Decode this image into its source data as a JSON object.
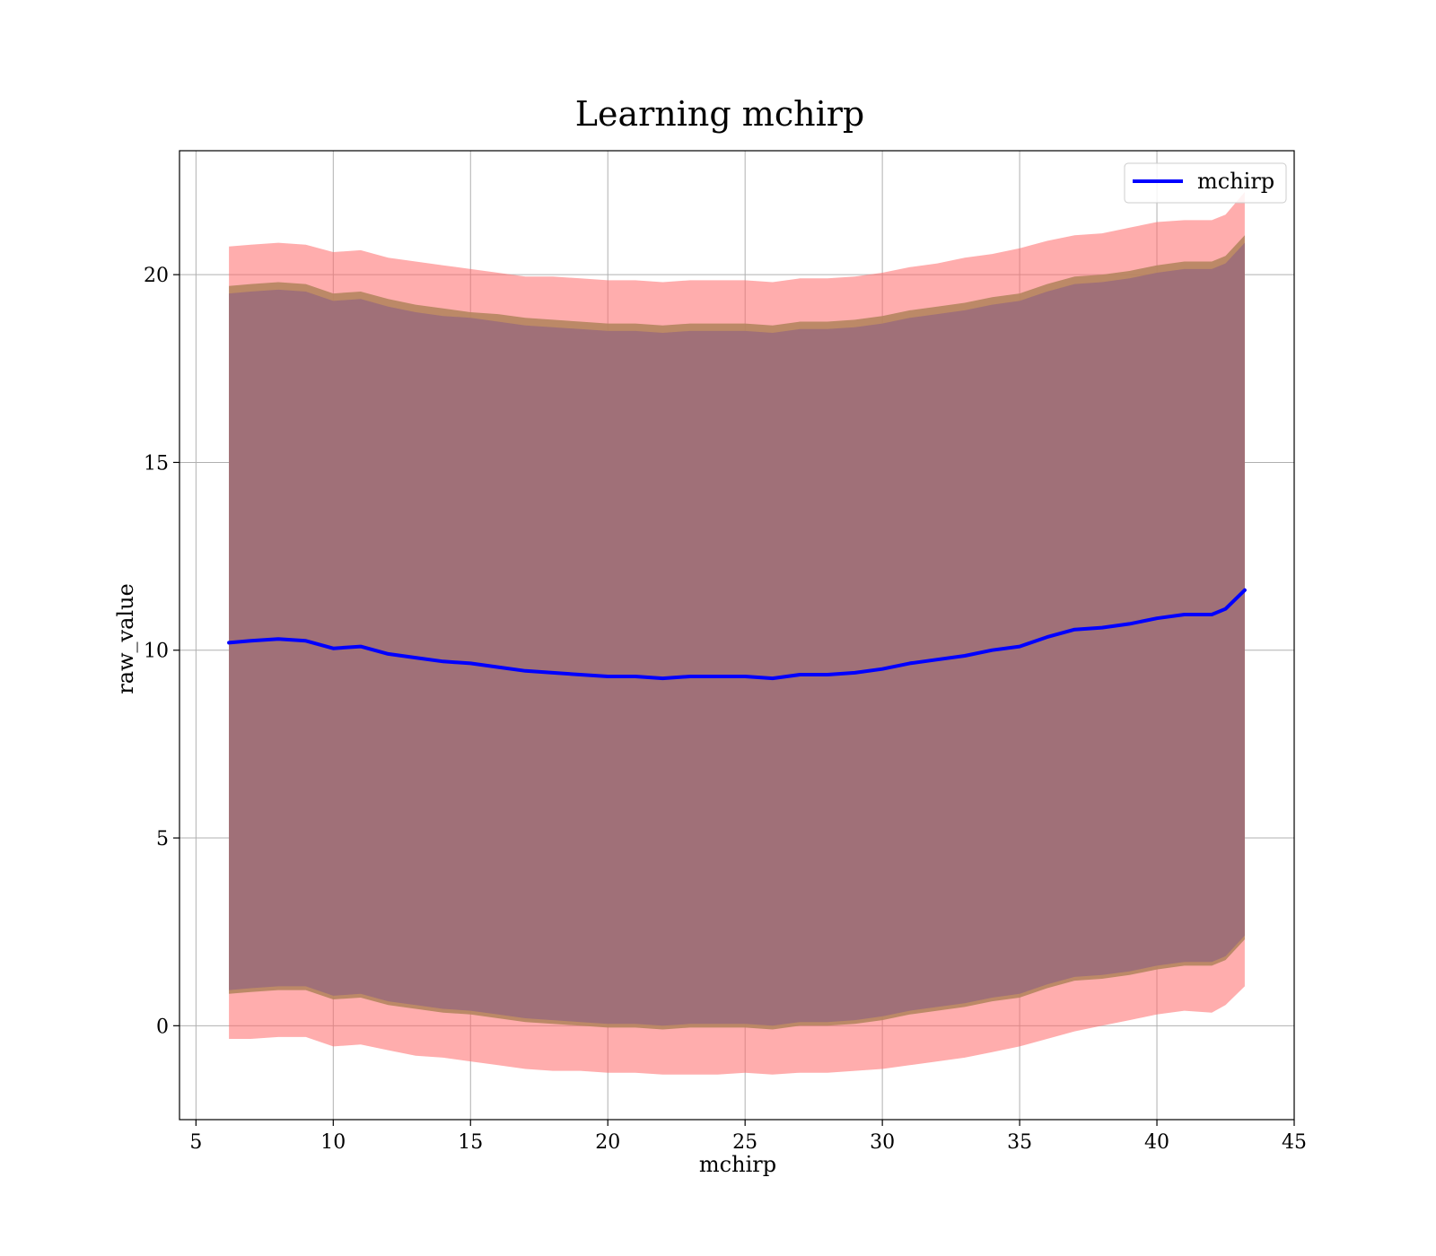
{
  "chart_data": {
    "type": "line",
    "title": "Learning mchirp",
    "xlabel": "mchirp",
    "ylabel": "raw_value",
    "xlim": [
      4.4,
      45
    ],
    "ylim": [
      -2.5,
      23.3
    ],
    "xticks": [
      5,
      10,
      15,
      20,
      25,
      30,
      35,
      40,
      45
    ],
    "yticks": [
      0,
      5,
      10,
      15,
      20
    ],
    "grid": true,
    "legend": {
      "placement": "top-right",
      "entries": [
        "mchirp"
      ]
    },
    "colors": {
      "line": "#0000ff",
      "outer_band": "#ff6a6a",
      "middle_band": "#b5855f",
      "inner_band": "#a07078",
      "grid": "#b0b0b0"
    },
    "series": [
      {
        "name": "mchirp",
        "x": [
          6.2,
          7,
          8,
          9,
          10,
          11,
          12,
          13,
          14,
          15,
          16,
          17,
          18,
          19,
          20,
          21,
          22,
          23,
          24,
          25,
          26,
          27,
          28,
          29,
          30,
          31,
          32,
          33,
          34,
          35,
          36,
          37,
          38,
          39,
          40,
          41,
          42,
          42.5,
          43.2
        ],
        "y": [
          10.2,
          10.25,
          10.3,
          10.25,
          10.05,
          10.1,
          9.9,
          9.8,
          9.7,
          9.65,
          9.55,
          9.45,
          9.4,
          9.35,
          9.3,
          9.3,
          9.25,
          9.3,
          9.3,
          9.3,
          9.25,
          9.35,
          9.35,
          9.4,
          9.5,
          9.65,
          9.75,
          9.85,
          10.0,
          10.1,
          10.35,
          10.55,
          10.6,
          10.7,
          10.85,
          10.95,
          10.95,
          11.1,
          11.6
        ],
        "bands": [
          {
            "name": "outer",
            "lower": [
              -0.35,
              -0.35,
              -0.3,
              -0.3,
              -0.55,
              -0.5,
              -0.65,
              -0.8,
              -0.85,
              -0.95,
              -1.05,
              -1.15,
              -1.2,
              -1.2,
              -1.25,
              -1.25,
              -1.3,
              -1.3,
              -1.3,
              -1.25,
              -1.3,
              -1.25,
              -1.25,
              -1.2,
              -1.15,
              -1.05,
              -0.95,
              -0.85,
              -0.7,
              -0.55,
              -0.35,
              -0.15,
              0.0,
              0.15,
              0.3,
              0.4,
              0.35,
              0.55,
              1.05
            ],
            "upper": [
              20.75,
              20.8,
              20.85,
              20.8,
              20.6,
              20.65,
              20.45,
              20.35,
              20.25,
              20.15,
              20.05,
              19.95,
              19.95,
              19.9,
              19.85,
              19.85,
              19.8,
              19.85,
              19.85,
              19.85,
              19.8,
              19.9,
              19.9,
              19.95,
              20.05,
              20.2,
              20.3,
              20.45,
              20.55,
              20.7,
              20.9,
              21.05,
              21.1,
              21.25,
              21.4,
              21.45,
              21.45,
              21.6,
              22.2
            ]
          },
          {
            "name": "middle",
            "lower": [
              0.85,
              0.9,
              0.95,
              0.95,
              0.7,
              0.75,
              0.55,
              0.45,
              0.35,
              0.3,
              0.2,
              0.1,
              0.05,
              0.0,
              -0.05,
              -0.05,
              -0.1,
              -0.05,
              -0.05,
              -0.05,
              -0.1,
              0.0,
              0.0,
              0.05,
              0.15,
              0.3,
              0.4,
              0.5,
              0.65,
              0.75,
              1.0,
              1.2,
              1.25,
              1.35,
              1.5,
              1.6,
              1.6,
              1.75,
              2.3
            ],
            "upper": [
              19.7,
              19.75,
              19.8,
              19.75,
              19.5,
              19.55,
              19.35,
              19.2,
              19.1,
              19.0,
              18.95,
              18.85,
              18.8,
              18.75,
              18.7,
              18.7,
              18.65,
              18.7,
              18.7,
              18.7,
              18.65,
              18.75,
              18.75,
              18.8,
              18.9,
              19.05,
              19.15,
              19.25,
              19.4,
              19.5,
              19.75,
              19.95,
              20.0,
              20.1,
              20.25,
              20.35,
              20.35,
              20.5,
              21.05
            ]
          },
          {
            "name": "inner",
            "lower": [
              0.95,
              1.0,
              1.05,
              1.05,
              0.8,
              0.85,
              0.65,
              0.55,
              0.45,
              0.4,
              0.3,
              0.2,
              0.15,
              0.1,
              0.05,
              0.05,
              0.0,
              0.05,
              0.05,
              0.05,
              0.0,
              0.1,
              0.1,
              0.15,
              0.25,
              0.4,
              0.5,
              0.6,
              0.75,
              0.85,
              1.1,
              1.3,
              1.35,
              1.45,
              1.6,
              1.7,
              1.7,
              1.85,
              2.4
            ],
            "upper": [
              19.5,
              19.55,
              19.6,
              19.55,
              19.3,
              19.35,
              19.15,
              19.0,
              18.9,
              18.85,
              18.75,
              18.65,
              18.6,
              18.55,
              18.5,
              18.5,
              18.45,
              18.5,
              18.5,
              18.5,
              18.45,
              18.55,
              18.55,
              18.6,
              18.7,
              18.85,
              18.95,
              19.05,
              19.2,
              19.3,
              19.55,
              19.75,
              19.8,
              19.9,
              20.05,
              20.15,
              20.15,
              20.3,
              20.85
            ]
          }
        ]
      }
    ]
  }
}
